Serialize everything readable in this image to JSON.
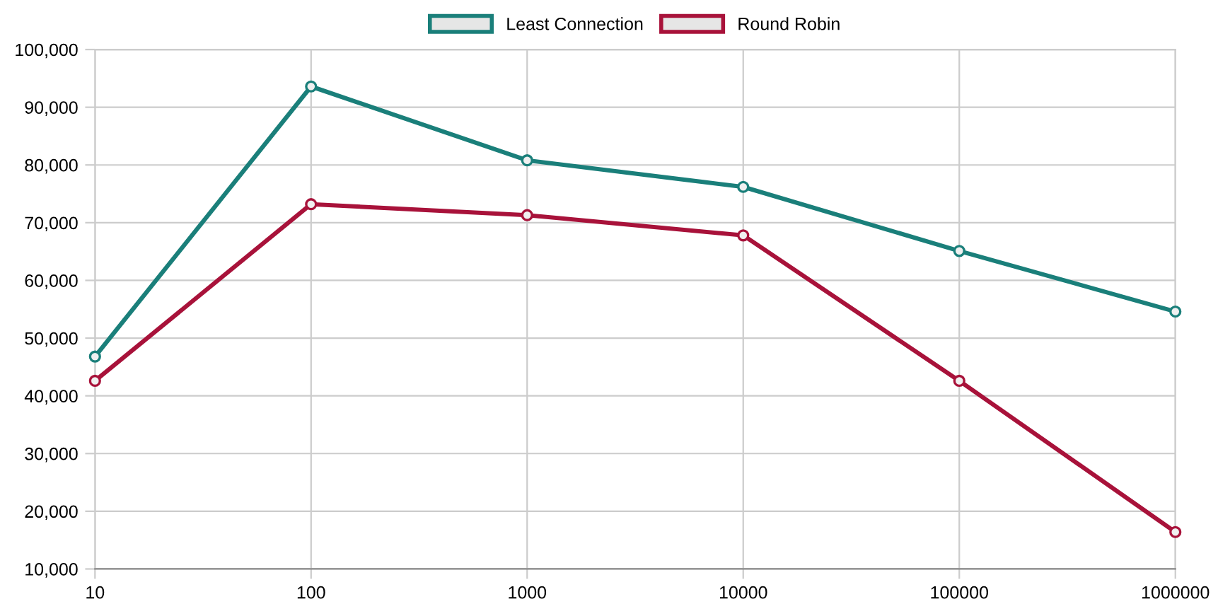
{
  "chart_data": {
    "type": "line",
    "categories": [
      "10",
      "100",
      "1000",
      "10000",
      "100000",
      "1000000"
    ],
    "series": [
      {
        "name": "Least Connection",
        "color": "#1a7f7a",
        "values": [
          46800,
          93600,
          80800,
          76200,
          65100,
          54600
        ]
      },
      {
        "name": "Round Robin",
        "color": "#a8123a",
        "values": [
          42600,
          73200,
          71300,
          67800,
          42600,
          16400
        ]
      }
    ],
    "ylim": [
      10000,
      100000
    ],
    "yticks": [
      {
        "value": 10000,
        "label": "10,000"
      },
      {
        "value": 20000,
        "label": "20,000"
      },
      {
        "value": 30000,
        "label": "30,000"
      },
      {
        "value": 40000,
        "label": "40,000"
      },
      {
        "value": 50000,
        "label": "50,000"
      },
      {
        "value": 60000,
        "label": "60,000"
      },
      {
        "value": 70000,
        "label": "70,000"
      },
      {
        "value": 80000,
        "label": "80,000"
      },
      {
        "value": 90000,
        "label": "90,000"
      },
      {
        "value": 100000,
        "label": "100,000"
      }
    ],
    "grid": true,
    "legend": "top",
    "marker": "circle",
    "line_style": "solid"
  }
}
